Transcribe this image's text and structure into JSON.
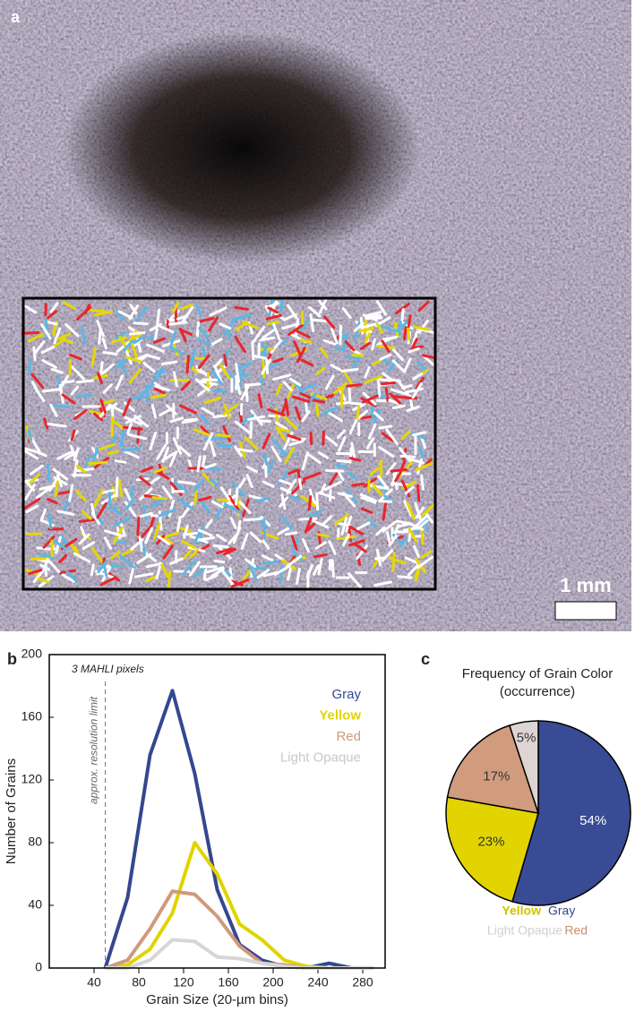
{
  "photo": {
    "label": "a",
    "scale_bar": "1 mm"
  },
  "chart_data": [
    {
      "type": "line",
      "panel": "b",
      "x_label": "Grain Size (20-µm bins)",
      "y_label": "Number of Grains",
      "annotations": [
        "3 MAHLI pixels",
        "approx. resolution limit"
      ],
      "resolution_limit_x": 50,
      "x": [
        50,
        70,
        90,
        110,
        130,
        150,
        170,
        190,
        210,
        230,
        250,
        270,
        290
      ],
      "series": [
        {
          "name": "Gray",
          "color": "#34478f",
          "values": [
            0,
            45,
            136,
            177,
            124,
            50,
            15,
            5,
            1,
            0,
            3,
            0,
            0
          ]
        },
        {
          "name": "Yellow",
          "color": "#e0d400",
          "values": [
            0,
            2,
            12,
            35,
            80,
            60,
            28,
            18,
            5,
            1,
            0,
            0,
            0
          ]
        },
        {
          "name": "Red",
          "color": "#cf9a7b",
          "values": [
            0,
            5,
            25,
            49,
            47,
            33,
            14,
            3,
            2,
            0,
            0,
            0,
            0
          ]
        },
        {
          "name": "Light Opaque",
          "color": "#d6d6d6",
          "values": [
            0,
            0,
            5,
            18,
            17,
            7,
            6,
            3,
            1,
            0,
            0,
            0,
            0
          ]
        }
      ],
      "xlim": [
        0,
        300
      ],
      "ylim": [
        0,
        200
      ],
      "xticks": [
        40,
        80,
        120,
        160,
        200,
        240,
        280
      ],
      "yticks": [
        0,
        40,
        80,
        120,
        160,
        200
      ],
      "legend": "upper right"
    },
    {
      "type": "pie",
      "panel": "c",
      "title": "Frequency of Grain Color",
      "subtitle": "(occurrence)",
      "categories": [
        "Gray",
        "Yellow",
        "Red",
        "Light Opaque"
      ],
      "values": [
        54,
        23,
        17,
        5
      ],
      "value_labels": [
        "54%",
        "23%",
        "17%",
        "5%"
      ],
      "colors": [
        "#384b94",
        "#e2d400",
        "#d19c7d",
        "#ddd5d3"
      ],
      "label_colors": [
        "#34478f",
        "#cfc200",
        "#c98f6c",
        "#cfcfcf"
      ]
    }
  ]
}
